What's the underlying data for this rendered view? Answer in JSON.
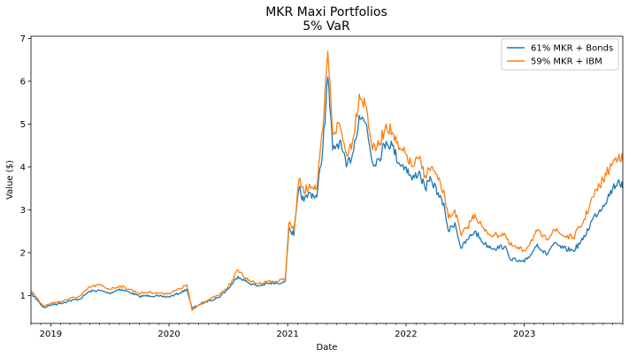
{
  "chart_data": {
    "type": "line",
    "title": "MKR Maxi Portfolios",
    "subtitle": "5% VaR",
    "xlabel": "Date",
    "ylabel": "Value ($)",
    "xlim": [
      "2018-11-01",
      "2023-11-01"
    ],
    "ylim": [
      0.35,
      7.05
    ],
    "yticks": [
      1,
      2,
      3,
      4,
      5,
      6,
      7
    ],
    "xticks": [
      {
        "date": "2019-01-01",
        "label": "2019"
      },
      {
        "date": "2020-01-01",
        "label": "2020"
      },
      {
        "date": "2021-01-01",
        "label": "2021"
      },
      {
        "date": "2022-01-01",
        "label": "2022"
      },
      {
        "date": "2023-01-01",
        "label": "2023"
      }
    ],
    "grid": false,
    "legend_position": "top-right",
    "series": [
      {
        "name": "61% MKR + Bonds",
        "color": "#1f77b4",
        "points": [
          [
            "2018-11-01",
            1.05
          ],
          [
            "2018-11-20",
            0.9
          ],
          [
            "2018-12-10",
            0.72
          ],
          [
            "2019-01-01",
            0.78
          ],
          [
            "2019-02-01",
            0.82
          ],
          [
            "2019-03-01",
            0.88
          ],
          [
            "2019-04-01",
            0.92
          ],
          [
            "2019-05-01",
            1.1
          ],
          [
            "2019-06-01",
            1.12
          ],
          [
            "2019-07-01",
            1.05
          ],
          [
            "2019-08-01",
            1.15
          ],
          [
            "2019-09-01",
            1.08
          ],
          [
            "2019-10-01",
            0.98
          ],
          [
            "2019-11-01",
            1.0
          ],
          [
            "2019-12-01",
            0.98
          ],
          [
            "2020-01-01",
            0.97
          ],
          [
            "2020-02-01",
            1.05
          ],
          [
            "2020-02-25",
            1.15
          ],
          [
            "2020-03-12",
            0.7
          ],
          [
            "2020-04-01",
            0.78
          ],
          [
            "2020-05-01",
            0.88
          ],
          [
            "2020-06-01",
            0.95
          ],
          [
            "2020-07-01",
            1.15
          ],
          [
            "2020-08-01",
            1.45
          ],
          [
            "2020-09-01",
            1.3
          ],
          [
            "2020-10-01",
            1.22
          ],
          [
            "2020-11-01",
            1.28
          ],
          [
            "2020-12-01",
            1.28
          ],
          [
            "2020-12-25",
            1.35
          ],
          [
            "2021-01-05",
            2.6
          ],
          [
            "2021-01-20",
            2.4
          ],
          [
            "2021-02-05",
            3.5
          ],
          [
            "2021-02-20",
            3.2
          ],
          [
            "2021-03-10",
            3.4
          ],
          [
            "2021-04-01",
            3.3
          ],
          [
            "2021-04-20",
            4.5
          ],
          [
            "2021-05-05",
            6.1
          ],
          [
            "2021-05-20",
            4.4
          ],
          [
            "2021-06-10",
            4.6
          ],
          [
            "2021-07-01",
            4.0
          ],
          [
            "2021-07-20",
            4.3
          ],
          [
            "2021-08-10",
            5.2
          ],
          [
            "2021-09-01",
            5.0
          ],
          [
            "2021-09-20",
            4.1
          ],
          [
            "2021-10-10",
            4.2
          ],
          [
            "2021-11-01",
            4.6
          ],
          [
            "2021-11-20",
            4.5
          ],
          [
            "2021-12-10",
            4.1
          ],
          [
            "2022-01-01",
            4.0
          ],
          [
            "2022-01-20",
            3.7
          ],
          [
            "2022-02-10",
            3.9
          ],
          [
            "2022-03-01",
            3.5
          ],
          [
            "2022-03-20",
            3.7
          ],
          [
            "2022-04-10",
            3.4
          ],
          [
            "2022-05-01",
            3.0
          ],
          [
            "2022-05-12",
            2.5
          ],
          [
            "2022-06-01",
            2.7
          ],
          [
            "2022-06-20",
            2.1
          ],
          [
            "2022-07-10",
            2.3
          ],
          [
            "2022-08-01",
            2.5
          ],
          [
            "2022-09-01",
            2.2
          ],
          [
            "2022-10-01",
            2.1
          ],
          [
            "2022-11-01",
            2.15
          ],
          [
            "2022-11-15",
            1.9
          ],
          [
            "2022-12-10",
            1.8
          ],
          [
            "2023-01-01",
            1.78
          ],
          [
            "2023-01-20",
            1.95
          ],
          [
            "2023-02-10",
            2.2
          ],
          [
            "2023-03-10",
            1.95
          ],
          [
            "2023-04-01",
            2.2
          ],
          [
            "2023-05-01",
            2.1
          ],
          [
            "2023-06-01",
            2.05
          ],
          [
            "2023-07-01",
            2.3
          ],
          [
            "2023-08-01",
            2.8
          ],
          [
            "2023-09-01",
            3.1
          ],
          [
            "2023-10-01",
            3.5
          ],
          [
            "2023-10-20",
            3.7
          ],
          [
            "2023-11-01",
            3.5
          ]
        ]
      },
      {
        "name": "59% MKR + IBM",
        "color": "#ff7f0e",
        "points": [
          [
            "2018-11-01",
            1.1
          ],
          [
            "2018-11-20",
            0.95
          ],
          [
            "2018-12-10",
            0.75
          ],
          [
            "2019-01-01",
            0.82
          ],
          [
            "2019-02-01",
            0.86
          ],
          [
            "2019-03-01",
            0.93
          ],
          [
            "2019-04-01",
            0.98
          ],
          [
            "2019-05-01",
            1.2
          ],
          [
            "2019-06-01",
            1.25
          ],
          [
            "2019-07-01",
            1.15
          ],
          [
            "2019-08-01",
            1.22
          ],
          [
            "2019-09-01",
            1.15
          ],
          [
            "2019-10-01",
            1.05
          ],
          [
            "2019-11-01",
            1.08
          ],
          [
            "2019-12-01",
            1.05
          ],
          [
            "2020-01-01",
            1.05
          ],
          [
            "2020-02-01",
            1.15
          ],
          [
            "2020-02-25",
            1.25
          ],
          [
            "2020-03-12",
            0.65
          ],
          [
            "2020-04-01",
            0.78
          ],
          [
            "2020-05-01",
            0.9
          ],
          [
            "2020-06-01",
            1.0
          ],
          [
            "2020-07-01",
            1.2
          ],
          [
            "2020-08-01",
            1.6
          ],
          [
            "2020-09-01",
            1.35
          ],
          [
            "2020-10-01",
            1.28
          ],
          [
            "2020-11-01",
            1.33
          ],
          [
            "2020-12-01",
            1.33
          ],
          [
            "2020-12-25",
            1.4
          ],
          [
            "2021-01-05",
            2.7
          ],
          [
            "2021-01-20",
            2.5
          ],
          [
            "2021-02-05",
            3.7
          ],
          [
            "2021-02-20",
            3.4
          ],
          [
            "2021-03-10",
            3.6
          ],
          [
            "2021-04-01",
            3.5
          ],
          [
            "2021-04-20",
            4.9
          ],
          [
            "2021-05-05",
            6.7
          ],
          [
            "2021-05-20",
            4.8
          ],
          [
            "2021-06-10",
            5.0
          ],
          [
            "2021-07-01",
            4.3
          ],
          [
            "2021-07-20",
            4.6
          ],
          [
            "2021-08-10",
            5.7
          ],
          [
            "2021-09-01",
            5.4
          ],
          [
            "2021-09-20",
            4.4
          ],
          [
            "2021-10-10",
            4.5
          ],
          [
            "2021-11-01",
            5.0
          ],
          [
            "2021-11-20",
            4.8
          ],
          [
            "2021-12-10",
            4.4
          ],
          [
            "2022-01-01",
            4.3
          ],
          [
            "2022-01-20",
            4.0
          ],
          [
            "2022-02-10",
            4.2
          ],
          [
            "2022-03-01",
            3.8
          ],
          [
            "2022-03-20",
            4.0
          ],
          [
            "2022-04-10",
            3.7
          ],
          [
            "2022-05-01",
            3.3
          ],
          [
            "2022-05-12",
            2.8
          ],
          [
            "2022-06-01",
            3.0
          ],
          [
            "2022-06-20",
            2.4
          ],
          [
            "2022-07-10",
            2.6
          ],
          [
            "2022-08-01",
            2.9
          ],
          [
            "2022-09-01",
            2.5
          ],
          [
            "2022-10-01",
            2.4
          ],
          [
            "2022-11-01",
            2.45
          ],
          [
            "2022-11-15",
            2.2
          ],
          [
            "2022-12-10",
            2.1
          ],
          [
            "2023-01-01",
            2.05
          ],
          [
            "2023-01-20",
            2.25
          ],
          [
            "2023-02-10",
            2.5
          ],
          [
            "2023-03-10",
            2.3
          ],
          [
            "2023-04-01",
            2.55
          ],
          [
            "2023-05-01",
            2.4
          ],
          [
            "2023-06-01",
            2.35
          ],
          [
            "2023-07-01",
            2.7
          ],
          [
            "2023-08-01",
            3.3
          ],
          [
            "2023-09-01",
            3.7
          ],
          [
            "2023-10-01",
            4.1
          ],
          [
            "2023-10-20",
            4.3
          ],
          [
            "2023-11-01",
            4.15
          ]
        ]
      }
    ]
  }
}
